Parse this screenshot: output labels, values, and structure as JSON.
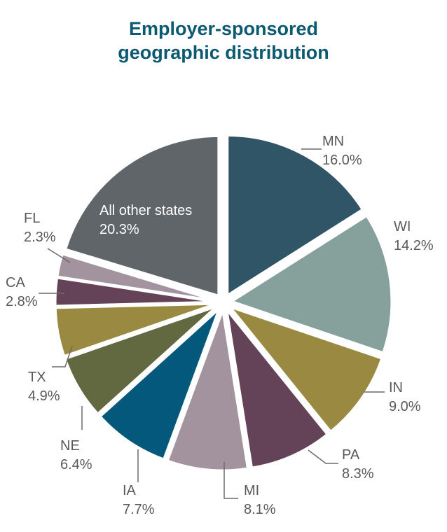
{
  "chart_data": {
    "type": "pie",
    "title_lines": [
      "Employer-sponsored",
      "geographic distribution"
    ],
    "slices": [
      {
        "label": "MN",
        "value": 16.0,
        "display": "16.0%",
        "color": "#2f5566"
      },
      {
        "label": "WI",
        "value": 14.2,
        "display": "14.2%",
        "color": "#86a19c"
      },
      {
        "label": "IN",
        "value": 9.0,
        "display": "9.0%",
        "color": "#998941"
      },
      {
        "label": "PA",
        "value": 8.3,
        "display": "8.3%",
        "color": "#644358"
      },
      {
        "label": "MI",
        "value": 8.1,
        "display": "8.1%",
        "color": "#a2939f"
      },
      {
        "label": "IA",
        "value": 7.7,
        "display": "7.7%",
        "color": "#03587b"
      },
      {
        "label": "NE",
        "value": 6.4,
        "display": "6.4%",
        "color": "#626840"
      },
      {
        "label": "TX",
        "value": 4.9,
        "display": "4.9%",
        "color": "#998941"
      },
      {
        "label": "CA",
        "value": 2.8,
        "display": "2.8%",
        "color": "#644358"
      },
      {
        "label": "FL",
        "value": 2.3,
        "display": "2.3%",
        "color": "#a2939f"
      },
      {
        "label": "All other states",
        "value": 20.3,
        "display": "20.3%",
        "color": "#5f6569"
      }
    ]
  }
}
